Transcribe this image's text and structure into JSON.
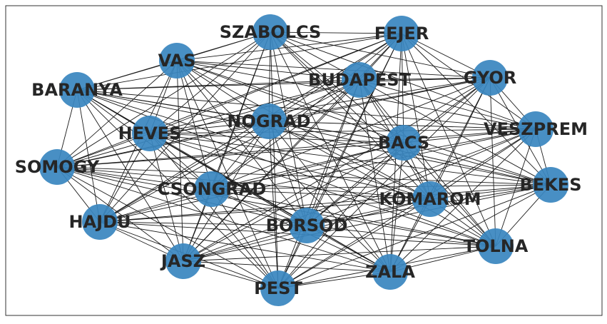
{
  "graph": {
    "node_color": "#3a87c0",
    "edge_color": "#1a1a1a",
    "label_color": "#262626",
    "nodes": [
      {
        "id": "SZABOLCS",
        "label": "SZABOLCS"
      },
      {
        "id": "FEJER",
        "label": "FEJER"
      },
      {
        "id": "VAS",
        "label": "VAS"
      },
      {
        "id": "GYOR",
        "label": "GYOR"
      },
      {
        "id": "BUDAPEST",
        "label": "BUDAPEST"
      },
      {
        "id": "BARANYA",
        "label": "BARANYA"
      },
      {
        "id": "NOGRAD",
        "label": "NOGRAD"
      },
      {
        "id": "VESZPREM",
        "label": "VESZPREM"
      },
      {
        "id": "HEVES",
        "label": "HEVES"
      },
      {
        "id": "BACS",
        "label": "BACS"
      },
      {
        "id": "SOMOGY",
        "label": "SOMOGY"
      },
      {
        "id": "BEKES",
        "label": "BEKES"
      },
      {
        "id": "CSONGRAD",
        "label": "CSONGRAD"
      },
      {
        "id": "KOMAROM",
        "label": "KOMAROM"
      },
      {
        "id": "HAJDU",
        "label": "HAJDU"
      },
      {
        "id": "BORSOD",
        "label": "BORSOD"
      },
      {
        "id": "TOLNA",
        "label": "TOLNA"
      },
      {
        "id": "JASZ",
        "label": "JASZ"
      },
      {
        "id": "ZALA",
        "label": "ZALA"
      },
      {
        "id": "PEST",
        "label": "PEST"
      }
    ],
    "edges": [
      [
        "SZABOLCS",
        "FEJER"
      ],
      [
        "SZABOLCS",
        "VAS"
      ],
      [
        "SZABOLCS",
        "GYOR"
      ],
      [
        "SZABOLCS",
        "BUDAPEST"
      ],
      [
        "SZABOLCS",
        "BARANYA"
      ],
      [
        "SZABOLCS",
        "NOGRAD"
      ],
      [
        "SZABOLCS",
        "HEVES"
      ],
      [
        "SZABOLCS",
        "BACS"
      ],
      [
        "SZABOLCS",
        "SOMOGY"
      ],
      [
        "SZABOLCS",
        "CSONGRAD"
      ],
      [
        "SZABOLCS",
        "KOMAROM"
      ],
      [
        "SZABOLCS",
        "HAJDU"
      ],
      [
        "SZABOLCS",
        "BORSOD"
      ],
      [
        "SZABOLCS",
        "TOLNA"
      ],
      [
        "SZABOLCS",
        "JASZ"
      ],
      [
        "SZABOLCS",
        "ZALA"
      ],
      [
        "SZABOLCS",
        "PEST"
      ],
      [
        "SZABOLCS",
        "VESZPREM"
      ],
      [
        "FEJER",
        "VAS"
      ],
      [
        "FEJER",
        "GYOR"
      ],
      [
        "FEJER",
        "BUDAPEST"
      ],
      [
        "FEJER",
        "BARANYA"
      ],
      [
        "FEJER",
        "NOGRAD"
      ],
      [
        "FEJER",
        "VESZPREM"
      ],
      [
        "FEJER",
        "HEVES"
      ],
      [
        "FEJER",
        "BACS"
      ],
      [
        "FEJER",
        "SOMOGY"
      ],
      [
        "FEJER",
        "BEKES"
      ],
      [
        "FEJER",
        "CSONGRAD"
      ],
      [
        "FEJER",
        "KOMAROM"
      ],
      [
        "FEJER",
        "HAJDU"
      ],
      [
        "FEJER",
        "BORSOD"
      ],
      [
        "FEJER",
        "TOLNA"
      ],
      [
        "FEJER",
        "JASZ"
      ],
      [
        "FEJER",
        "ZALA"
      ],
      [
        "FEJER",
        "PEST"
      ],
      [
        "VAS",
        "GYOR"
      ],
      [
        "VAS",
        "BUDAPEST"
      ],
      [
        "VAS",
        "BARANYA"
      ],
      [
        "VAS",
        "NOGRAD"
      ],
      [
        "VAS",
        "VESZPREM"
      ],
      [
        "VAS",
        "HEVES"
      ],
      [
        "VAS",
        "BACS"
      ],
      [
        "VAS",
        "SOMOGY"
      ],
      [
        "VAS",
        "BEKES"
      ],
      [
        "VAS",
        "CSONGRAD"
      ],
      [
        "VAS",
        "KOMAROM"
      ],
      [
        "VAS",
        "HAJDU"
      ],
      [
        "VAS",
        "BORSOD"
      ],
      [
        "VAS",
        "JASZ"
      ],
      [
        "VAS",
        "ZALA"
      ],
      [
        "VAS",
        "PEST"
      ],
      [
        "GYOR",
        "BUDAPEST"
      ],
      [
        "GYOR",
        "BARANYA"
      ],
      [
        "GYOR",
        "NOGRAD"
      ],
      [
        "GYOR",
        "VESZPREM"
      ],
      [
        "GYOR",
        "HEVES"
      ],
      [
        "GYOR",
        "BACS"
      ],
      [
        "GYOR",
        "SOMOGY"
      ],
      [
        "GYOR",
        "BEKES"
      ],
      [
        "GYOR",
        "CSONGRAD"
      ],
      [
        "GYOR",
        "KOMAROM"
      ],
      [
        "GYOR",
        "BORSOD"
      ],
      [
        "GYOR",
        "TOLNA"
      ],
      [
        "GYOR",
        "JASZ"
      ],
      [
        "GYOR",
        "ZALA"
      ],
      [
        "GYOR",
        "PEST"
      ],
      [
        "BUDAPEST",
        "BARANYA"
      ],
      [
        "BUDAPEST",
        "NOGRAD"
      ],
      [
        "BUDAPEST",
        "VESZPREM"
      ],
      [
        "BUDAPEST",
        "HEVES"
      ],
      [
        "BUDAPEST",
        "BACS"
      ],
      [
        "BUDAPEST",
        "SOMOGY"
      ],
      [
        "BUDAPEST",
        "BEKES"
      ],
      [
        "BUDAPEST",
        "CSONGRAD"
      ],
      [
        "BUDAPEST",
        "KOMAROM"
      ],
      [
        "BUDAPEST",
        "HAJDU"
      ],
      [
        "BUDAPEST",
        "BORSOD"
      ],
      [
        "BUDAPEST",
        "TOLNA"
      ],
      [
        "BUDAPEST",
        "JASZ"
      ],
      [
        "BUDAPEST",
        "ZALA"
      ],
      [
        "BUDAPEST",
        "PEST"
      ],
      [
        "BARANYA",
        "NOGRAD"
      ],
      [
        "BARANYA",
        "HEVES"
      ],
      [
        "BARANYA",
        "BACS"
      ],
      [
        "BARANYA",
        "SOMOGY"
      ],
      [
        "BARANYA",
        "BEKES"
      ],
      [
        "BARANYA",
        "CSONGRAD"
      ],
      [
        "BARANYA",
        "KOMAROM"
      ],
      [
        "BARANYA",
        "HAJDU"
      ],
      [
        "BARANYA",
        "BORSOD"
      ],
      [
        "BARANYA",
        "TOLNA"
      ],
      [
        "BARANYA",
        "JASZ"
      ],
      [
        "BARANYA",
        "ZALA"
      ],
      [
        "BARANYA",
        "PEST"
      ],
      [
        "BARANYA",
        "VESZPREM"
      ],
      [
        "NOGRAD",
        "VESZPREM"
      ],
      [
        "NOGRAD",
        "HEVES"
      ],
      [
        "NOGRAD",
        "BACS"
      ],
      [
        "NOGRAD",
        "SOMOGY"
      ],
      [
        "NOGRAD",
        "BEKES"
      ],
      [
        "NOGRAD",
        "CSONGRAD"
      ],
      [
        "NOGRAD",
        "KOMAROM"
      ],
      [
        "NOGRAD",
        "HAJDU"
      ],
      [
        "NOGRAD",
        "BORSOD"
      ],
      [
        "NOGRAD",
        "TOLNA"
      ],
      [
        "NOGRAD",
        "JASZ"
      ],
      [
        "NOGRAD",
        "ZALA"
      ],
      [
        "NOGRAD",
        "PEST"
      ],
      [
        "VESZPREM",
        "HEVES"
      ],
      [
        "VESZPREM",
        "BACS"
      ],
      [
        "VESZPREM",
        "SOMOGY"
      ],
      [
        "VESZPREM",
        "BEKES"
      ],
      [
        "VESZPREM",
        "CSONGRAD"
      ],
      [
        "VESZPREM",
        "KOMAROM"
      ],
      [
        "VESZPREM",
        "HAJDU"
      ],
      [
        "VESZPREM",
        "BORSOD"
      ],
      [
        "VESZPREM",
        "TOLNA"
      ],
      [
        "VESZPREM",
        "JASZ"
      ],
      [
        "VESZPREM",
        "ZALA"
      ],
      [
        "VESZPREM",
        "PEST"
      ],
      [
        "HEVES",
        "BACS"
      ],
      [
        "HEVES",
        "SOMOGY"
      ],
      [
        "HEVES",
        "BEKES"
      ],
      [
        "HEVES",
        "CSONGRAD"
      ],
      [
        "HEVES",
        "KOMAROM"
      ],
      [
        "HEVES",
        "HAJDU"
      ],
      [
        "HEVES",
        "BORSOD"
      ],
      [
        "HEVES",
        "TOLNA"
      ],
      [
        "HEVES",
        "JASZ"
      ],
      [
        "HEVES",
        "ZALA"
      ],
      [
        "HEVES",
        "PEST"
      ],
      [
        "BACS",
        "SOMOGY"
      ],
      [
        "BACS",
        "BEKES"
      ],
      [
        "BACS",
        "CSONGRAD"
      ],
      [
        "BACS",
        "KOMAROM"
      ],
      [
        "BACS",
        "HAJDU"
      ],
      [
        "BACS",
        "BORSOD"
      ],
      [
        "BACS",
        "TOLNA"
      ],
      [
        "BACS",
        "JASZ"
      ],
      [
        "BACS",
        "ZALA"
      ],
      [
        "BACS",
        "PEST"
      ],
      [
        "SOMOGY",
        "BEKES"
      ],
      [
        "SOMOGY",
        "CSONGRAD"
      ],
      [
        "SOMOGY",
        "KOMAROM"
      ],
      [
        "SOMOGY",
        "HAJDU"
      ],
      [
        "SOMOGY",
        "BORSOD"
      ],
      [
        "SOMOGY",
        "TOLNA"
      ],
      [
        "SOMOGY",
        "JASZ"
      ],
      [
        "SOMOGY",
        "ZALA"
      ],
      [
        "SOMOGY",
        "PEST"
      ],
      [
        "BEKES",
        "CSONGRAD"
      ],
      [
        "BEKES",
        "KOMAROM"
      ],
      [
        "BEKES",
        "HAJDU"
      ],
      [
        "BEKES",
        "BORSOD"
      ],
      [
        "BEKES",
        "TOLNA"
      ],
      [
        "BEKES",
        "JASZ"
      ],
      [
        "BEKES",
        "ZALA"
      ],
      [
        "BEKES",
        "PEST"
      ],
      [
        "CSONGRAD",
        "KOMAROM"
      ],
      [
        "CSONGRAD",
        "HAJDU"
      ],
      [
        "CSONGRAD",
        "BORSOD"
      ],
      [
        "CSONGRAD",
        "TOLNA"
      ],
      [
        "CSONGRAD",
        "JASZ"
      ],
      [
        "CSONGRAD",
        "ZALA"
      ],
      [
        "CSONGRAD",
        "PEST"
      ],
      [
        "KOMAROM",
        "HAJDU"
      ],
      [
        "KOMAROM",
        "BORSOD"
      ],
      [
        "KOMAROM",
        "TOLNA"
      ],
      [
        "KOMAROM",
        "JASZ"
      ],
      [
        "KOMAROM",
        "ZALA"
      ],
      [
        "KOMAROM",
        "PEST"
      ],
      [
        "HAJDU",
        "BORSOD"
      ],
      [
        "HAJDU",
        "TOLNA"
      ],
      [
        "HAJDU",
        "JASZ"
      ],
      [
        "HAJDU",
        "ZALA"
      ],
      [
        "HAJDU",
        "PEST"
      ],
      [
        "BORSOD",
        "TOLNA"
      ],
      [
        "BORSOD",
        "JASZ"
      ],
      [
        "BORSOD",
        "ZALA"
      ],
      [
        "BORSOD",
        "PEST"
      ],
      [
        "TOLNA",
        "JASZ"
      ],
      [
        "TOLNA",
        "ZALA"
      ],
      [
        "TOLNA",
        "PEST"
      ],
      [
        "JASZ",
        "ZALA"
      ],
      [
        "JASZ",
        "PEST"
      ],
      [
        "ZALA",
        "PEST"
      ]
    ]
  }
}
